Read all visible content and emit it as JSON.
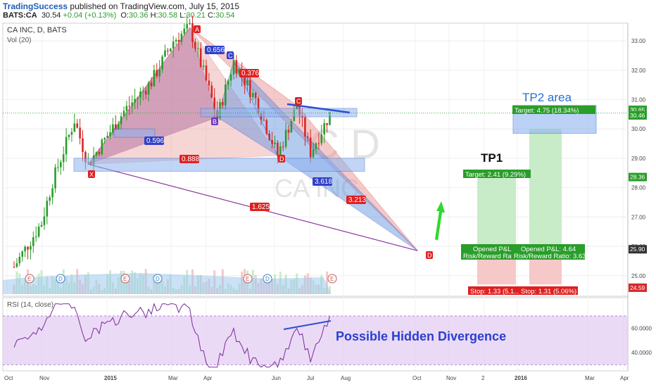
{
  "header": {
    "brand": "TradingSuccess",
    "published": "published on TradingView.com, July 15, 2015",
    "symbol": "BATS:CA",
    "last": "30.54",
    "change": "+0.04 (+0.13%)",
    "ohlc_o_label": "O:",
    "ohlc_o": "30.36",
    "ohlc_h_label": "H:",
    "ohlc_h": "30.58",
    "ohlc_l_label": "L:",
    "ohlc_l": "30.21",
    "ohlc_c_label": "C:",
    "ohlc_c": "30.54"
  },
  "colors": {
    "up": "#2a9d2a",
    "down": "#d62828",
    "pattern_red": "#e88a8a",
    "pattern_purple": "#9b6fb0",
    "blue_zone": "#5b8de0",
    "rsi_band": "#e2cbf2",
    "accent": "#2a4fd6"
  },
  "chart_data": [
    {
      "type": "candlestick",
      "title": "CA INC, D, BATS",
      "indicator": "Vol (20)",
      "watermark": "CA INC",
      "x_ticks": [
        "Oct",
        "Nov",
        "2015",
        "Mar",
        "Apr",
        "Jun",
        "Jul",
        "Aug",
        "Oct",
        "Nov",
        "2",
        "2016",
        "Mar",
        "Apr"
      ],
      "y_ticks": [
        "25.00",
        "26.00",
        "27.00",
        "28.00",
        "29.00",
        "30.00",
        "31.00",
        "32.00",
        "33.00"
      ],
      "ylim": [
        24.3,
        33.6
      ],
      "price_labels": [
        {
          "value": 30.65,
          "text": "30.65",
          "color": "#2a9d2a"
        },
        {
          "value": 30.46,
          "text": "30.46",
          "color": "#2a9d2a"
        },
        {
          "value": 28.36,
          "text": "28.36",
          "color": "#2a9d2a"
        },
        {
          "value": 25.9,
          "text": "25.90",
          "color": "#333333"
        },
        {
          "value": 24.59,
          "text": "24.59",
          "color": "#d62828"
        }
      ],
      "harmonic_points": [
        {
          "label": "X",
          "date_index": 27,
          "price": 28.8
        },
        {
          "label": "A",
          "date_index": 64,
          "price": 33.45
        },
        {
          "label": "B",
          "date_index": 74,
          "price": 30.4
        },
        {
          "label": "C",
          "date_index": 80,
          "price": 32.3
        },
        {
          "label": "D",
          "date_index": 96,
          "price": 29.1
        },
        {
          "label": "C",
          "date_index": 103,
          "price": 30.8
        },
        {
          "label": "D",
          "date_index": 147,
          "price": 25.85
        }
      ],
      "ratios": [
        "0.656",
        "0.596",
        "0.376",
        "0.888",
        "3.618",
        "3.213",
        "1.625"
      ],
      "positions": [
        {
          "name": "TP1",
          "target": "Target: 2.41 (9.29%)",
          "opened": "Opened P&L:",
          "rr": "Risk/Reward Ratio:",
          "stop": "Stop: 1.33 (5.1..."
        },
        {
          "name": "TP2 area",
          "target": "Target: 4.75 (18.34%)",
          "opened": "Opened P&L: 4.64",
          "rr": "Risk/Reward Ratio: 3.63",
          "stop": "Stop: 1.31 (5.06%)"
        }
      ],
      "event_markers": [
        "E",
        "D",
        "E",
        "D",
        "E",
        "D",
        "E"
      ]
    },
    {
      "type": "line",
      "title": "RSI (14, close)",
      "y_ticks": [
        "40.0000",
        "60.0000"
      ],
      "ylim": [
        25,
        85
      ],
      "band": [
        30,
        70
      ],
      "annotation": "Possible Hidden Divergence"
    }
  ]
}
